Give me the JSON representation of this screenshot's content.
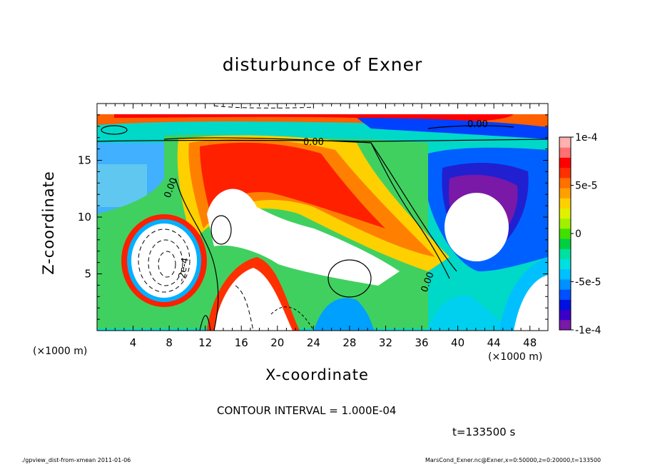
{
  "chart_data": {
    "type": "heatmap",
    "title": "disturbunce of Exner",
    "xlabel": "X-coordinate",
    "ylabel": "Z-coordinate",
    "x_unit_label": "(×1000 m)",
    "xlim": [
      0,
      50
    ],
    "ylim": [
      0,
      20
    ],
    "x_ticks": [
      4,
      8,
      12,
      16,
      20,
      24,
      28,
      32,
      36,
      40,
      44,
      48
    ],
    "y_ticks": [
      5,
      10,
      15
    ],
    "colorbar": {
      "range": [
        -0.0001,
        0.0001
      ],
      "labels": [
        "1e-4",
        "5e-5",
        "0",
        "-5e-5",
        "-1e-4"
      ],
      "label_values": [
        0.0001,
        5e-05,
        0,
        -5e-05,
        -0.0001
      ],
      "colors": [
        "#7a18a8",
        "#3a00c8",
        "#0010e0",
        "#0050ff",
        "#0090ff",
        "#00c0ff",
        "#00e0e0",
        "#00e0a0",
        "#00d040",
        "#40e000",
        "#a0f000",
        "#e0f000",
        "#ffd000",
        "#ffa000",
        "#ff7000",
        "#ff3000",
        "#ff0000",
        "#ff7070",
        "#ffb0b0"
      ]
    },
    "contour_labels": [
      "0.00",
      "0.00",
      "0.00",
      "0.00",
      "-2e-4"
    ],
    "contour_interval_text": "CONTOUR INTERVAL = 1.000E-04",
    "time_text": "t=133500  s",
    "footer_left": "./gpview_dist-from-xmean  2011-01-06",
    "footer_right": "MarsCond_Exner.nc@Exner,x=0:50000,z=0:20000,t=133500"
  }
}
